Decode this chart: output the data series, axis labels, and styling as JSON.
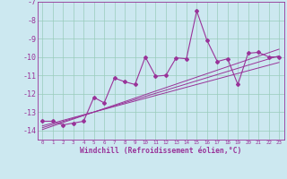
{
  "xlabel": "Windchill (Refroidissement éolien,°C)",
  "bg_color": "#cce8f0",
  "grid_color": "#99ccbb",
  "line_color": "#993399",
  "x_values": [
    0,
    1,
    2,
    3,
    4,
    5,
    6,
    7,
    8,
    9,
    10,
    11,
    12,
    13,
    14,
    15,
    16,
    17,
    18,
    19,
    20,
    21,
    22,
    23
  ],
  "main_line": [
    -13.5,
    -13.5,
    -13.7,
    -13.6,
    -13.5,
    -12.2,
    -12.5,
    -11.15,
    -11.35,
    -11.5,
    -10.0,
    -11.05,
    -11.0,
    -10.05,
    -10.1,
    -7.5,
    -9.1,
    -10.25,
    -10.1,
    -11.5,
    -9.8,
    -9.75,
    -10.0,
    -10.0
  ],
  "reg_line1": [
    -13.85,
    -13.68,
    -13.51,
    -13.34,
    -13.17,
    -13.0,
    -12.83,
    -12.66,
    -12.49,
    -12.32,
    -12.15,
    -11.98,
    -11.81,
    -11.64,
    -11.47,
    -11.3,
    -11.13,
    -10.96,
    -10.79,
    -10.62,
    -10.45,
    -10.28,
    -10.11,
    -9.94
  ],
  "reg_line2": [
    -13.95,
    -13.76,
    -13.57,
    -13.38,
    -13.19,
    -13.0,
    -12.81,
    -12.62,
    -12.43,
    -12.24,
    -12.05,
    -11.86,
    -11.67,
    -11.48,
    -11.29,
    -11.1,
    -10.91,
    -10.72,
    -10.53,
    -10.34,
    -10.15,
    -9.96,
    -9.77,
    -9.58
  ],
  "reg_line3": [
    -13.75,
    -13.6,
    -13.45,
    -13.3,
    -13.15,
    -13.0,
    -12.85,
    -12.7,
    -12.55,
    -12.4,
    -12.25,
    -12.1,
    -11.95,
    -11.8,
    -11.65,
    -11.5,
    -11.35,
    -11.2,
    -11.05,
    -10.9,
    -10.75,
    -10.6,
    -10.45,
    -10.3
  ],
  "ylim": [
    -14.5,
    -7.0
  ],
  "xlim": [
    -0.5,
    23.5
  ],
  "yticks": [
    -14,
    -13,
    -12,
    -11,
    -10,
    -9,
    -8,
    -7
  ],
  "xticks": [
    0,
    1,
    2,
    3,
    4,
    5,
    6,
    7,
    8,
    9,
    10,
    11,
    12,
    13,
    14,
    15,
    16,
    17,
    18,
    19,
    20,
    21,
    22,
    23
  ],
  "ytick_fontsize": 6.0,
  "xtick_fontsize": 4.2,
  "xlabel_fontsize": 5.8
}
